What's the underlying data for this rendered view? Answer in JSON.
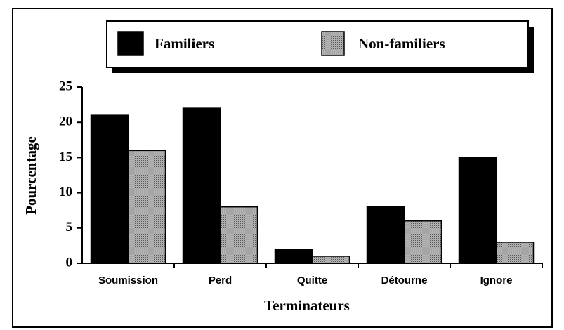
{
  "chart_data": {
    "type": "bar",
    "xlabel": "Terminateurs",
    "ylabel": "Pourcentage",
    "categories": [
      "Soumission",
      "Perd",
      "Quitte",
      "Détourne",
      "Ignore"
    ],
    "series": [
      {
        "name": "Familiers",
        "color": "#000000",
        "values": [
          21,
          22,
          2,
          8,
          15
        ]
      },
      {
        "name": "Non-familiers",
        "color": "#b4b4b4",
        "values": [
          16,
          8,
          1,
          6,
          3
        ]
      }
    ],
    "ylim": [
      0,
      25
    ],
    "yticks": [
      0,
      5,
      10,
      15,
      20,
      25
    ],
    "legend": "top"
  }
}
